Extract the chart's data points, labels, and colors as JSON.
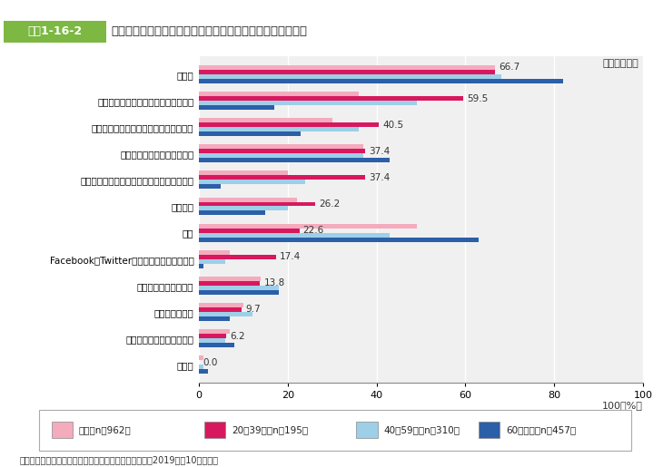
{
  "header_label": "図表1-16-2",
  "header_title": "食品安全に関する情報を入手したい情報源（女性・年代別）",
  "categories": [
    "テレビ",
    "インターネット上のニュースサイト等",
    "スーパーマーケットなど食品の購入場所",
    "家族や友人などからの口コミ",
    "学校での教育（小学校、中学校、高校など）",
    "行政機関",
    "新聞",
    "FacebookやTwitter等のソーシャルメディア",
    "雑誌（有料の情報誌）",
    "大学や研究機関",
    "タウン誌（無料の情報誌）",
    "その他"
  ],
  "series": {
    "全体(n=962)": [
      66.7,
      36.0,
      30.0,
      37.0,
      20.0,
      22.0,
      49.0,
      7.0,
      14.0,
      10.0,
      7.0,
      1.0
    ],
    "20～39歳(n=195)": [
      66.7,
      59.5,
      40.5,
      37.4,
      37.4,
      26.2,
      22.6,
      17.4,
      13.8,
      9.7,
      6.2,
      0.0
    ],
    "40～59歳(n=310)": [
      68.0,
      49.0,
      36.0,
      37.0,
      24.0,
      20.0,
      43.0,
      6.0,
      18.0,
      12.0,
      6.0,
      1.0
    ],
    "60歳以上(n=457)": [
      82.0,
      17.0,
      23.0,
      43.0,
      5.0,
      15.0,
      63.0,
      1.0,
      18.0,
      7.0,
      8.0,
      2.0
    ]
  },
  "series_order": [
    "全体(n=962)",
    "20～39歳(n=195)",
    "40～59歳(n=310)",
    "60歳以上(n=457)"
  ],
  "legend_labels": [
    "全体（n＝962）",
    "20～39歳（n＝195）",
    "40～59歳（n＝310）",
    "60歳以上（n＝457）"
  ],
  "colors": {
    "全体(n=962)": "#F4ABBE",
    "20～39歳(n=195)": "#D8185E",
    "40～59歳(n=310)": "#9DCFE8",
    "60歳以上(n=457)": "#2B5FA8"
  },
  "value_labels_by_cat": {
    "テレビ": {
      "series": "全体(n=962)",
      "value": 66.7
    },
    "インターネット上のニュースサイト等": {
      "series": "20～39歳(n=195)",
      "value": 59.5
    },
    "スーパーマーケットなど食品の購入場所": {
      "series": "20～39歳(n=195)",
      "value": 40.5
    },
    "家族や友人などからの口コミ": {
      "series": "20～39歳(n=195)",
      "value": 37.4
    },
    "学校での教育（小学校、中学校、高校など）": {
      "series": "20～39歳(n=195)",
      "value": 37.4
    },
    "行政機関": {
      "series": "20～39歳(n=195)",
      "value": 26.2
    },
    "新聞": {
      "series": "20～39歳(n=195)",
      "value": 22.6
    },
    "FacebookやTwitter等のソーシャルメディア": {
      "series": "20～39歳(n=195)",
      "value": 17.4
    },
    "雑誌（有料の情報誌）": {
      "series": "20～39歳(n=195)",
      "value": 13.8
    },
    "大学や研究機関": {
      "series": "20～39歳(n=195)",
      "value": 9.7
    },
    "タウン誌（無料の情報誌）": {
      "series": "20～39歳(n=195)",
      "value": 6.2
    },
    "その他": {
      "series": "20～39歳(n=195)",
      "value": 0.0
    }
  },
  "xticks": [
    0,
    20,
    40,
    60,
    80,
    100
  ],
  "footnote": "（複数回答）",
  "source": "資料：農林水産省「食育に関する意識調査」（令和元（2019）年10月実施）",
  "header_green": "#7CB842",
  "plot_bg": "#F0F0F0"
}
